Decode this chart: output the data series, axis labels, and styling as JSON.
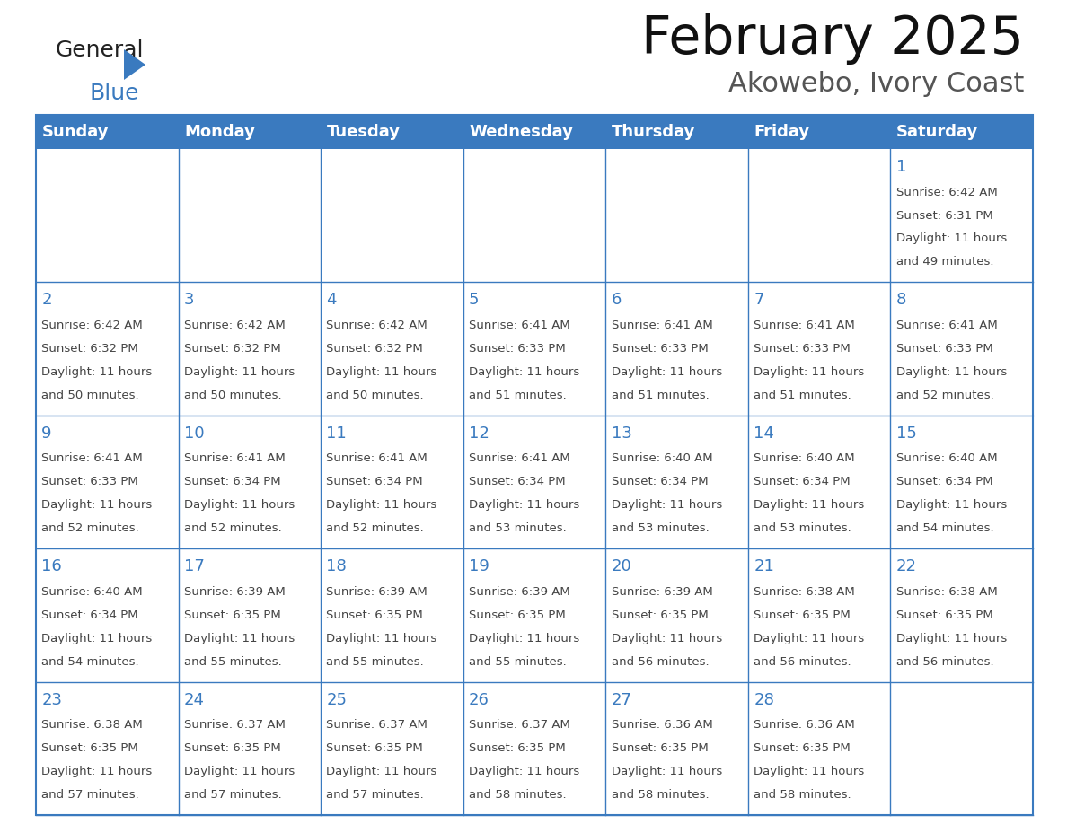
{
  "title": "February 2025",
  "subtitle": "Akowebo, Ivory Coast",
  "header_bg": "#3a7abf",
  "header_text": "#ffffff",
  "cell_bg": "#ffffff",
  "border_color": "#3a7abf",
  "text_color": "#444444",
  "day_number_color": "#3a7abf",
  "days_of_week": [
    "Sunday",
    "Monday",
    "Tuesday",
    "Wednesday",
    "Thursday",
    "Friday",
    "Saturday"
  ],
  "weeks": [
    [
      {
        "day": "",
        "sunrise": "",
        "sunset": "",
        "daylight_h": "",
        "daylight_m": ""
      },
      {
        "day": "",
        "sunrise": "",
        "sunset": "",
        "daylight_h": "",
        "daylight_m": ""
      },
      {
        "day": "",
        "sunrise": "",
        "sunset": "",
        "daylight_h": "",
        "daylight_m": ""
      },
      {
        "day": "",
        "sunrise": "",
        "sunset": "",
        "daylight_h": "",
        "daylight_m": ""
      },
      {
        "day": "",
        "sunrise": "",
        "sunset": "",
        "daylight_h": "",
        "daylight_m": ""
      },
      {
        "day": "",
        "sunrise": "",
        "sunset": "",
        "daylight_h": "",
        "daylight_m": ""
      },
      {
        "day": "1",
        "sunrise": "6:42 AM",
        "sunset": "6:31 PM",
        "daylight_h": "11",
        "daylight_m": "49"
      }
    ],
    [
      {
        "day": "2",
        "sunrise": "6:42 AM",
        "sunset": "6:32 PM",
        "daylight_h": "11",
        "daylight_m": "50"
      },
      {
        "day": "3",
        "sunrise": "6:42 AM",
        "sunset": "6:32 PM",
        "daylight_h": "11",
        "daylight_m": "50"
      },
      {
        "day": "4",
        "sunrise": "6:42 AM",
        "sunset": "6:32 PM",
        "daylight_h": "11",
        "daylight_m": "50"
      },
      {
        "day": "5",
        "sunrise": "6:41 AM",
        "sunset": "6:33 PM",
        "daylight_h": "11",
        "daylight_m": "51"
      },
      {
        "day": "6",
        "sunrise": "6:41 AM",
        "sunset": "6:33 PM",
        "daylight_h": "11",
        "daylight_m": "51"
      },
      {
        "day": "7",
        "sunrise": "6:41 AM",
        "sunset": "6:33 PM",
        "daylight_h": "11",
        "daylight_m": "51"
      },
      {
        "day": "8",
        "sunrise": "6:41 AM",
        "sunset": "6:33 PM",
        "daylight_h": "11",
        "daylight_m": "52"
      }
    ],
    [
      {
        "day": "9",
        "sunrise": "6:41 AM",
        "sunset": "6:33 PM",
        "daylight_h": "11",
        "daylight_m": "52"
      },
      {
        "day": "10",
        "sunrise": "6:41 AM",
        "sunset": "6:34 PM",
        "daylight_h": "11",
        "daylight_m": "52"
      },
      {
        "day": "11",
        "sunrise": "6:41 AM",
        "sunset": "6:34 PM",
        "daylight_h": "11",
        "daylight_m": "52"
      },
      {
        "day": "12",
        "sunrise": "6:41 AM",
        "sunset": "6:34 PM",
        "daylight_h": "11",
        "daylight_m": "53"
      },
      {
        "day": "13",
        "sunrise": "6:40 AM",
        "sunset": "6:34 PM",
        "daylight_h": "11",
        "daylight_m": "53"
      },
      {
        "day": "14",
        "sunrise": "6:40 AM",
        "sunset": "6:34 PM",
        "daylight_h": "11",
        "daylight_m": "53"
      },
      {
        "day": "15",
        "sunrise": "6:40 AM",
        "sunset": "6:34 PM",
        "daylight_h": "11",
        "daylight_m": "54"
      }
    ],
    [
      {
        "day": "16",
        "sunrise": "6:40 AM",
        "sunset": "6:34 PM",
        "daylight_h": "11",
        "daylight_m": "54"
      },
      {
        "day": "17",
        "sunrise": "6:39 AM",
        "sunset": "6:35 PM",
        "daylight_h": "11",
        "daylight_m": "55"
      },
      {
        "day": "18",
        "sunrise": "6:39 AM",
        "sunset": "6:35 PM",
        "daylight_h": "11",
        "daylight_m": "55"
      },
      {
        "day": "19",
        "sunrise": "6:39 AM",
        "sunset": "6:35 PM",
        "daylight_h": "11",
        "daylight_m": "55"
      },
      {
        "day": "20",
        "sunrise": "6:39 AM",
        "sunset": "6:35 PM",
        "daylight_h": "11",
        "daylight_m": "56"
      },
      {
        "day": "21",
        "sunrise": "6:38 AM",
        "sunset": "6:35 PM",
        "daylight_h": "11",
        "daylight_m": "56"
      },
      {
        "day": "22",
        "sunrise": "6:38 AM",
        "sunset": "6:35 PM",
        "daylight_h": "11",
        "daylight_m": "56"
      }
    ],
    [
      {
        "day": "23",
        "sunrise": "6:38 AM",
        "sunset": "6:35 PM",
        "daylight_h": "11",
        "daylight_m": "57"
      },
      {
        "day": "24",
        "sunrise": "6:37 AM",
        "sunset": "6:35 PM",
        "daylight_h": "11",
        "daylight_m": "57"
      },
      {
        "day": "25",
        "sunrise": "6:37 AM",
        "sunset": "6:35 PM",
        "daylight_h": "11",
        "daylight_m": "57"
      },
      {
        "day": "26",
        "sunrise": "6:37 AM",
        "sunset": "6:35 PM",
        "daylight_h": "11",
        "daylight_m": "58"
      },
      {
        "day": "27",
        "sunrise": "6:36 AM",
        "sunset": "6:35 PM",
        "daylight_h": "11",
        "daylight_m": "58"
      },
      {
        "day": "28",
        "sunrise": "6:36 AM",
        "sunset": "6:35 PM",
        "daylight_h": "11",
        "daylight_m": "58"
      },
      {
        "day": "",
        "sunrise": "",
        "sunset": "",
        "daylight_h": "",
        "daylight_m": ""
      }
    ]
  ],
  "logo_general_color": "#222222",
  "logo_blue_color": "#3a7abf",
  "logo_triangle_color": "#3a7abf",
  "title_color": "#111111",
  "subtitle_color": "#555555"
}
